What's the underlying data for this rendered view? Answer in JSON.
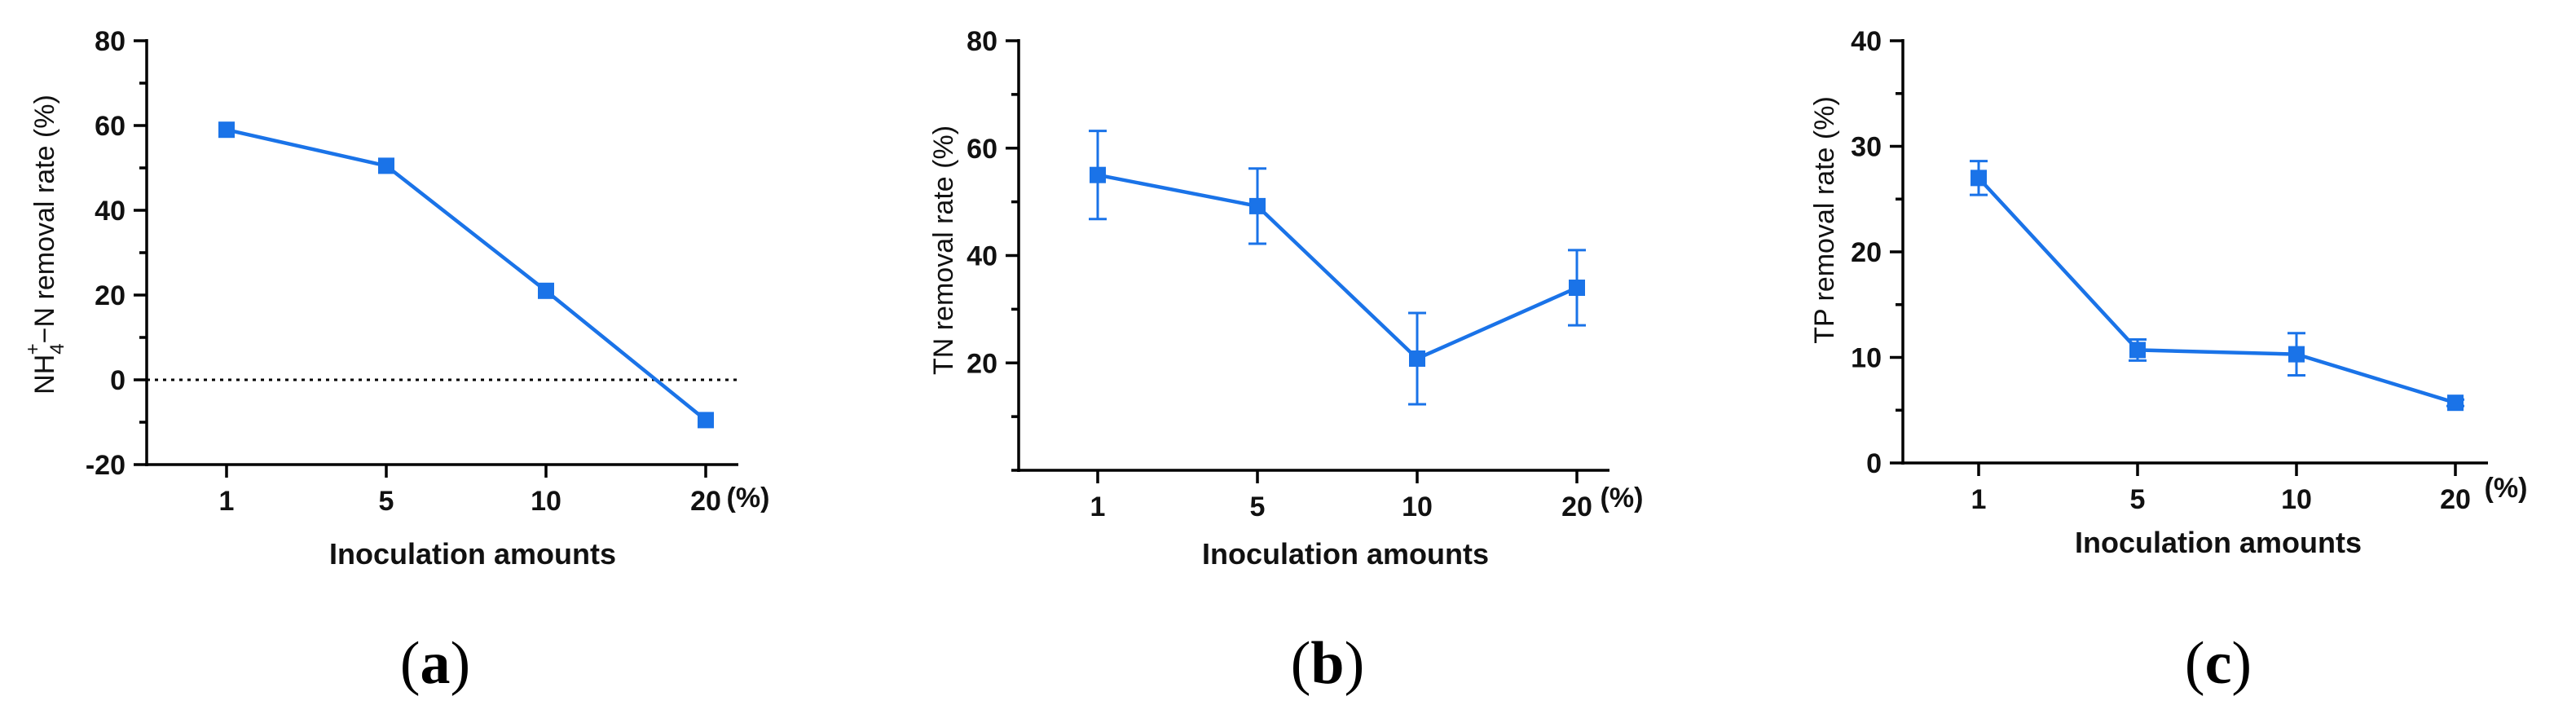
{
  "colors": {
    "series": "#1a73e8",
    "axis": "#000000"
  },
  "chart_data": [
    {
      "type": "line",
      "panel_label": "a",
      "ylabel_parts": {
        "pre": "NH",
        "sub": "4",
        "sup": "+",
        "post": "−N removal rate (%)"
      },
      "xlabel": "Inoculation  amounts",
      "x_unit": "(%)",
      "categories": [
        "1",
        "5",
        "10",
        "20"
      ],
      "ylim": [
        -20,
        80
      ],
      "yticks": [
        -20,
        0,
        20,
        40,
        60,
        80
      ],
      "ytick_labels": [
        "-20",
        "0",
        "20",
        "40",
        "60",
        "80"
      ],
      "reference_line": 0,
      "series": [
        {
          "name": "NH4+-N removal rate",
          "values": [
            59,
            50.5,
            21,
            -9.5
          ],
          "errors": [
            0,
            0,
            0,
            0
          ]
        }
      ]
    },
    {
      "type": "line",
      "panel_label": "b",
      "ylabel": "TN removal rate (%)",
      "xlabel": "Inoculation  amounts",
      "x_unit": "(%)",
      "categories": [
        "1",
        "5",
        "10",
        "20"
      ],
      "ylim": [
        0,
        80
      ],
      "yticks": [
        20,
        40,
        60,
        80
      ],
      "ytick_labels": [
        "20",
        "40",
        "60",
        "80"
      ],
      "series": [
        {
          "name": "TN removal rate",
          "values": [
            55,
            49.2,
            20.8,
            34
          ],
          "errors": [
            8.2,
            7,
            8.5,
            7
          ]
        }
      ]
    },
    {
      "type": "line",
      "panel_label": "c",
      "ylabel": "TP removal rate (%)",
      "xlabel": "Inoculation  amounts",
      "x_unit": "(%)",
      "categories": [
        "1",
        "5",
        "10",
        "20"
      ],
      "ylim": [
        0,
        40
      ],
      "yticks": [
        0,
        10,
        20,
        30,
        40
      ],
      "ytick_labels": [
        "0",
        "10",
        "20",
        "30",
        "40"
      ],
      "series": [
        {
          "name": "TP removal rate",
          "values": [
            27,
            10.7,
            10.3,
            5.7
          ],
          "errors": [
            1.6,
            1,
            2,
            0.3
          ]
        }
      ]
    }
  ]
}
